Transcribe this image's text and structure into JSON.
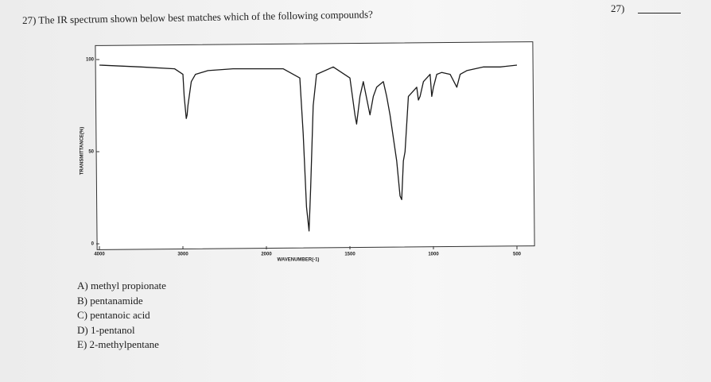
{
  "question": {
    "corner_number": "27)",
    "text": "27) The IR spectrum shown below best matches which of the following compounds?",
    "choices": [
      "A) methyl propionate",
      "B) pentanamide",
      "C) pentanoic acid",
      "D) 1-pentanol",
      "E) 2-methylpentane"
    ]
  },
  "chart_data": {
    "type": "line",
    "x_label": "WAVENUMBER(-1)",
    "y_label": "TRANSMITTANCE(%)",
    "x": [
      4000,
      3500,
      3100,
      3000,
      2985,
      2960,
      2950,
      2940,
      2900,
      2850,
      2700,
      2400,
      2000,
      1900,
      1800,
      1780,
      1760,
      1745,
      1735,
      1720,
      1700,
      1600,
      1500,
      1470,
      1460,
      1440,
      1420,
      1380,
      1360,
      1340,
      1300,
      1280,
      1260,
      1220,
      1200,
      1190,
      1180,
      1170,
      1150,
      1100,
      1090,
      1080,
      1060,
      1020,
      1010,
      1000,
      980,
      950,
      900,
      860,
      840,
      800,
      700,
      600,
      500
    ],
    "series": [
      {
        "color": "#1a1a1a",
        "values": [
          97,
          96,
          95,
          92,
          80,
          68,
          70,
          75,
          88,
          92,
          94,
          95,
          95,
          95,
          90,
          60,
          20,
          7,
          30,
          75,
          92,
          96,
          90,
          70,
          65,
          80,
          88,
          70,
          80,
          85,
          88,
          80,
          70,
          45,
          26,
          24,
          45,
          50,
          80,
          85,
          78,
          80,
          88,
          92,
          80,
          85,
          92,
          93,
          92,
          85,
          92,
          94,
          96,
          96,
          97
        ]
      }
    ],
    "xlim": [
      4000,
      500
    ],
    "xticks": [
      4000,
      3000,
      2000,
      1500,
      1000,
      500
    ],
    "ylim": [
      0,
      100
    ],
    "yticks": [
      0,
      50,
      100
    ]
  }
}
